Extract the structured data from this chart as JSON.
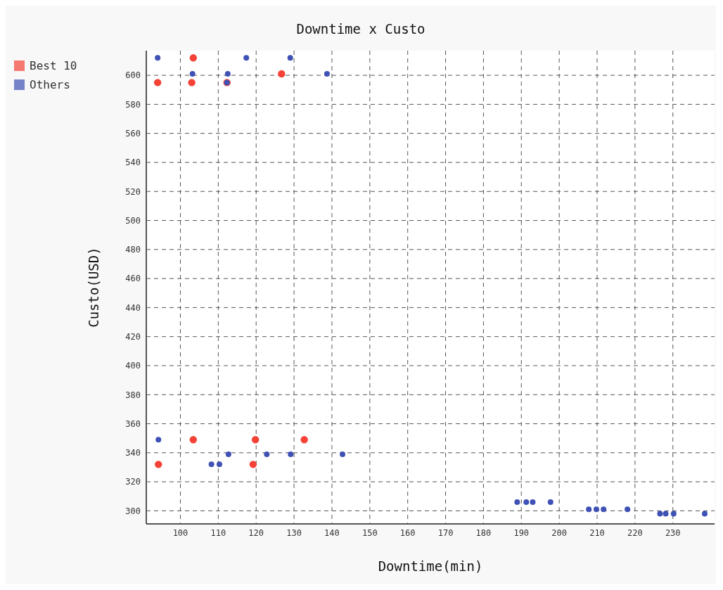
{
  "chart_data": {
    "type": "scatter",
    "title": "Downtime x Custo",
    "xlabel": "Downtime(min)",
    "ylabel": "Custo(USD)",
    "xlim": [
      91,
      241
    ],
    "ylim": [
      291,
      617
    ],
    "xticks": [
      100,
      110,
      120,
      130,
      140,
      150,
      160,
      170,
      180,
      190,
      200,
      210,
      220,
      230
    ],
    "yticks": [
      300,
      320,
      340,
      360,
      380,
      400,
      420,
      440,
      460,
      480,
      500,
      520,
      540,
      560,
      580,
      600
    ],
    "grid": true,
    "legend": "top left",
    "marker": "circle",
    "series": [
      {
        "name": "Best 10",
        "color": "#f44336",
        "x": [
          94,
          103.4,
          103,
          112.3,
          126.7,
          94.2,
          103.4,
          119.8,
          119.2,
          132.7
        ],
        "values": [
          595,
          612,
          595,
          595,
          601,
          332,
          349,
          349,
          332,
          349
        ]
      },
      {
        "name": "Others",
        "color": "#3f51b5",
        "x": [
          94,
          117.4,
          129,
          103.2,
          112.5,
          138.7,
          112.3,
          94.2,
          108.2,
          110.3,
          112.7,
          122.8,
          129.1,
          142.8,
          188.9,
          191.3,
          193,
          197.7,
          207.8,
          209.8,
          211.7,
          218,
          226.6,
          228.1,
          230.2,
          238.4
        ],
        "values": [
          612,
          612,
          612,
          601,
          601,
          601,
          595,
          349,
          332,
          332,
          339,
          339,
          339,
          339,
          306,
          306,
          306,
          306,
          301,
          301,
          301,
          301,
          298,
          298,
          298,
          298
        ]
      }
    ]
  }
}
